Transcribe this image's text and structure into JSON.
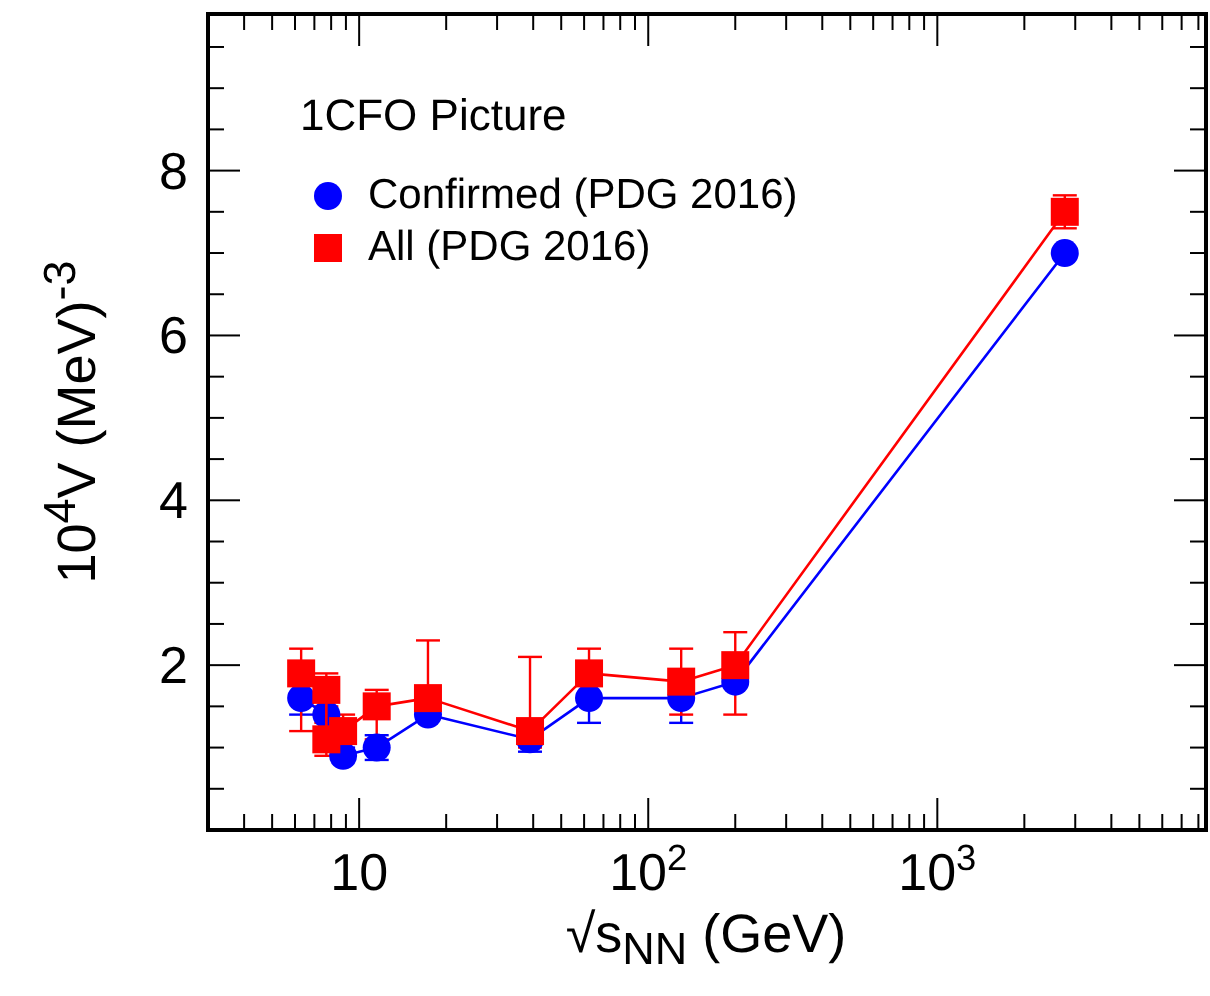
{
  "chart_data": {
    "type": "line",
    "xlabel": "√s$_{NN}$ (GeV)",
    "ylabel": "10$^{4}$V (MeV)$^{-3}$",
    "legend_title": "1CFO Picture",
    "log": "x",
    "legend": "top left",
    "line_style": "solid",
    "xlim": [
      3,
      8500
    ],
    "ylim": [
      0,
      9.9
    ],
    "xticks": [
      {
        "value": 4,
        "label": null
      },
      {
        "value": 5,
        "label": null
      },
      {
        "value": 6,
        "label": null
      },
      {
        "value": 7,
        "label": null
      },
      {
        "value": 8,
        "label": null
      },
      {
        "value": 9,
        "label": null
      },
      {
        "value": 10,
        "label": "10"
      },
      {
        "value": 20,
        "label": null
      },
      {
        "value": 30,
        "label": null
      },
      {
        "value": 40,
        "label": null
      },
      {
        "value": 50,
        "label": null
      },
      {
        "value": 60,
        "label": null
      },
      {
        "value": 70,
        "label": null
      },
      {
        "value": 80,
        "label": null
      },
      {
        "value": 90,
        "label": null
      },
      {
        "value": 100,
        "label": "10$^{2}$"
      },
      {
        "value": 200,
        "label": null
      },
      {
        "value": 300,
        "label": null
      },
      {
        "value": 400,
        "label": null
      },
      {
        "value": 500,
        "label": null
      },
      {
        "value": 600,
        "label": null
      },
      {
        "value": 700,
        "label": null
      },
      {
        "value": 800,
        "label": null
      },
      {
        "value": 900,
        "label": null
      },
      {
        "value": 1000,
        "label": "10$^{3}$"
      },
      {
        "value": 2000,
        "label": null
      },
      {
        "value": 3000,
        "label": null
      },
      {
        "value": 4000,
        "label": null
      },
      {
        "value": 5000,
        "label": null
      },
      {
        "value": 6000,
        "label": null
      },
      {
        "value": 7000,
        "label": null
      },
      {
        "value": 8000,
        "label": null
      }
    ],
    "yticks": [
      {
        "value": 0.5,
        "label": null
      },
      {
        "value": 1,
        "label": null
      },
      {
        "value": 1.5,
        "label": null
      },
      2,
      {
        "value": 2.5,
        "label": null
      },
      {
        "value": 3,
        "label": null
      },
      {
        "value": 3.5,
        "label": null
      },
      4,
      {
        "value": 4.5,
        "label": null
      },
      {
        "value": 5,
        "label": null
      },
      {
        "value": 5.5,
        "label": null
      },
      6,
      {
        "value": 6.5,
        "label": null
      },
      {
        "value": 7,
        "label": null
      },
      {
        "value": 7.5,
        "label": null
      },
      8,
      {
        "value": 8.5,
        "label": null
      },
      {
        "value": 9,
        "label": null
      },
      {
        "value": 9.5,
        "label": null
      }
    ],
    "series": [
      {
        "name": "Confirmed (PDG 2016)",
        "color": "#0000ff",
        "marker": "circle",
        "x": [
          6.3,
          7.7,
          8.8,
          11.5,
          17.3,
          39,
          62.4,
          130,
          200,
          2760
        ],
        "values": [
          1.6,
          1.4,
          0.9,
          1.0,
          1.4,
          1.1,
          1.6,
          1.6,
          1.8,
          7.0
        ],
        "errors": [
          [
            1.4,
            1.8
          ],
          null,
          [
            0.85,
            1.0
          ],
          [
            0.85,
            1.15
          ],
          null,
          [
            0.95,
            1.1
          ],
          [
            1.3,
            1.8
          ],
          [
            1.3,
            1.6
          ],
          null,
          null
        ]
      },
      {
        "name": "All (PDG 2016)",
        "color": "#ff0000",
        "marker": "square",
        "x": [
          6.3,
          7.7,
          7.7,
          8.8,
          11.5,
          17.3,
          39,
          62.4,
          130,
          200,
          2760
        ],
        "values": [
          1.9,
          1.7,
          1.1,
          1.2,
          1.5,
          1.6,
          1.2,
          1.9,
          1.8,
          2.0,
          7.5
        ],
        "errors": [
          [
            1.2,
            2.2
          ],
          [
            1.5,
            1.9
          ],
          [
            0.9,
            1.3
          ],
          [
            0.9,
            1.4
          ],
          [
            1.1,
            1.7
          ],
          [
            1.4,
            2.3
          ],
          [
            1.0,
            2.1
          ],
          [
            1.9,
            2.2
          ],
          [
            1.4,
            2.2
          ],
          [
            1.4,
            2.4
          ],
          [
            7.3,
            7.7
          ]
        ]
      }
    ]
  }
}
